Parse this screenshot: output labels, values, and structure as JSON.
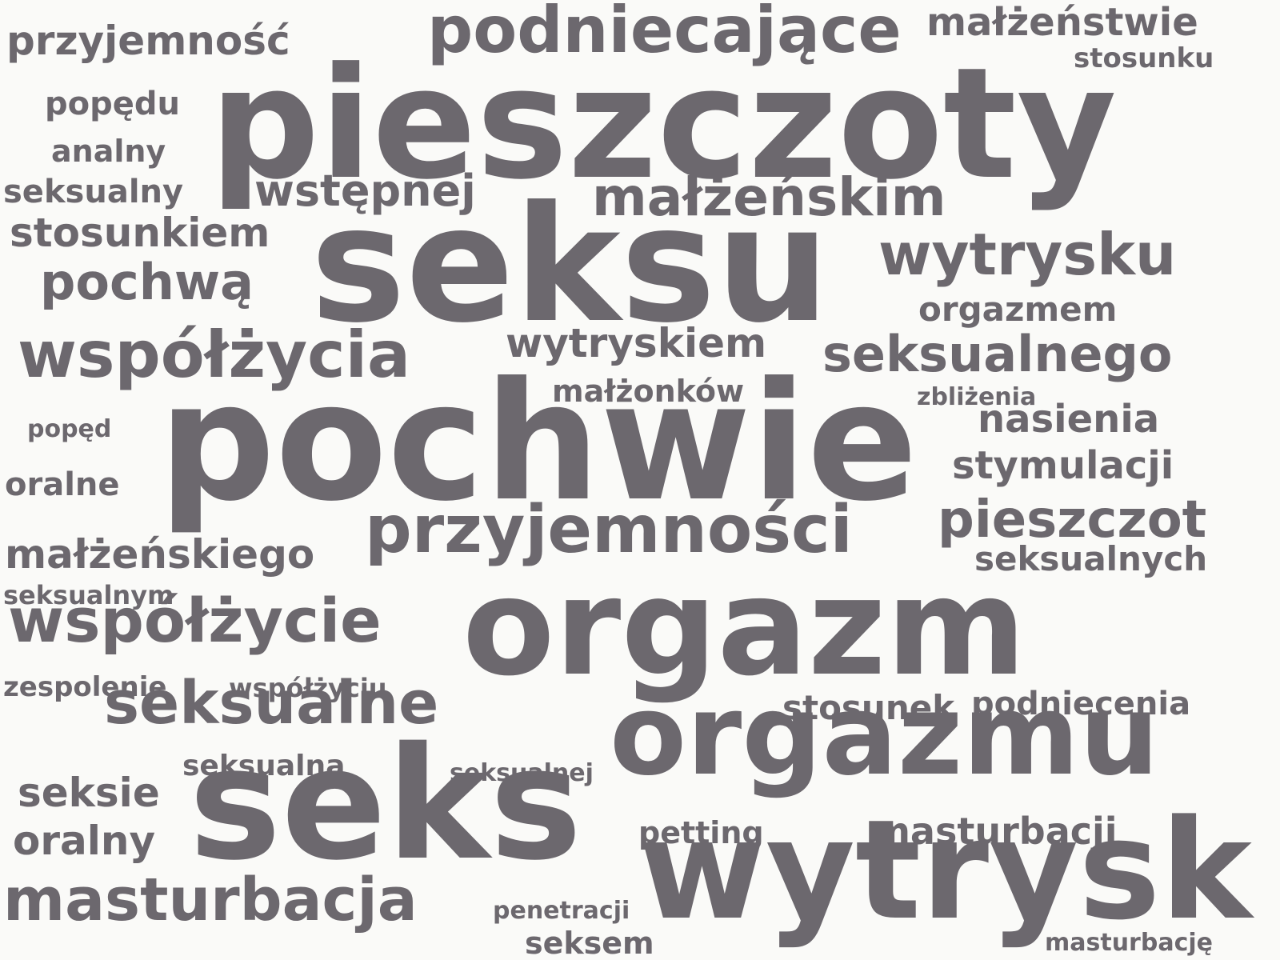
{
  "colors": {
    "background": "#fafaf8",
    "word": "#6c686e"
  },
  "words": [
    "pieszczoty",
    "seksu",
    "pochwie",
    "orgazm",
    "seks",
    "orgazmu",
    "wytrysk",
    "podniecające",
    "przyjemności",
    "współżycia",
    "współżycie",
    "seksualne",
    "masturbacja",
    "wytrysku",
    "małżeńskim",
    "pieszczot",
    "seksualnego",
    "przyjemność",
    "małżeństwie",
    "stosunkiem",
    "pochwą",
    "wstępnej",
    "wytryskiem",
    "małżeńskiego",
    "nasienia",
    "stymulacji",
    "seksualnych",
    "orgazmem",
    "stosunek",
    "podniecenia",
    "masturbacji",
    "seksie",
    "oralny",
    "seksualny",
    "popędu",
    "analny",
    "małżonków",
    "oralne",
    "seksualną",
    "petting",
    "seksem",
    "penetracji",
    "seksualnej",
    "zespolenie",
    "współżyciu",
    "seksualnym",
    "stosunku",
    "zbliżenia",
    "popęd",
    "masturbację"
  ]
}
